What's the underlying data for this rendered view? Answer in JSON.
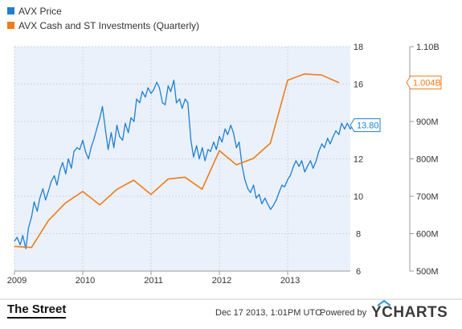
{
  "chart_data": {
    "type": "line",
    "legend": {
      "placement": "top-left",
      "items": [
        {
          "label": "AVX Price",
          "color": "#1f7fd1"
        },
        {
          "label": "AVX Cash and ST Investments (Quarterly)",
          "color": "#f07c1a"
        }
      ]
    },
    "x_ticks": [
      "2009",
      "2010",
      "2011",
      "2012",
      "2013"
    ],
    "xlim": [
      "2009-01",
      "2013-12"
    ],
    "left_axis": {
      "ticks": [
        "6",
        "8",
        "10",
        "12",
        "14",
        "16",
        "18"
      ],
      "ylim": [
        6,
        18
      ]
    },
    "right_axis": {
      "ticks": [
        "500M",
        "600M",
        "700M",
        "800M",
        "900M",
        "1.00B",
        "1.10B"
      ],
      "ylim": [
        500,
        1100
      ],
      "unit": "M"
    },
    "grid": true,
    "plot_background": "#eaf1fb",
    "series": [
      {
        "name": "AVX Price",
        "axis": "left",
        "color": "#1f7fd1",
        "last_value_label": "13.80",
        "points": [
          [
            "2009-01-01",
            7.6
          ],
          [
            "2009-01-15",
            7.8
          ],
          [
            "2009-02-01",
            7.4
          ],
          [
            "2009-02-15",
            7.9
          ],
          [
            "2009-03-01",
            7.2
          ],
          [
            "2009-03-15",
            8.3
          ],
          [
            "2009-04-01",
            8.9
          ],
          [
            "2009-04-15",
            9.7
          ],
          [
            "2009-05-01",
            9.2
          ],
          [
            "2009-05-15",
            9.9
          ],
          [
            "2009-06-01",
            10.4
          ],
          [
            "2009-06-15",
            9.8
          ],
          [
            "2009-07-01",
            10.3
          ],
          [
            "2009-07-15",
            10.8
          ],
          [
            "2009-08-01",
            11.1
          ],
          [
            "2009-08-15",
            10.6
          ],
          [
            "2009-09-01",
            11.4
          ],
          [
            "2009-09-15",
            11.8
          ],
          [
            "2009-10-01",
            11.2
          ],
          [
            "2009-10-15",
            12.0
          ],
          [
            "2009-11-01",
            11.5
          ],
          [
            "2009-11-15",
            12.4
          ],
          [
            "2009-12-01",
            12.6
          ],
          [
            "2009-12-15",
            12.5
          ],
          [
            "2010-01-01",
            13.0
          ],
          [
            "2010-01-15",
            12.4
          ],
          [
            "2010-02-01",
            12.0
          ],
          [
            "2010-02-15",
            12.6
          ],
          [
            "2010-03-01",
            13.1
          ],
          [
            "2010-03-15",
            13.6
          ],
          [
            "2010-04-01",
            14.2
          ],
          [
            "2010-04-15",
            14.8
          ],
          [
            "2010-05-01",
            13.5
          ],
          [
            "2010-05-15",
            12.5
          ],
          [
            "2010-06-01",
            13.4
          ],
          [
            "2010-06-15",
            12.6
          ],
          [
            "2010-07-01",
            13.8
          ],
          [
            "2010-07-15",
            13.2
          ],
          [
            "2010-08-01",
            13.0
          ],
          [
            "2010-08-15",
            13.9
          ],
          [
            "2010-09-01",
            13.4
          ],
          [
            "2010-09-15",
            14.2
          ],
          [
            "2010-10-01",
            14.0
          ],
          [
            "2010-10-15",
            15.2
          ],
          [
            "2010-11-01",
            15.0
          ],
          [
            "2010-11-15",
            15.6
          ],
          [
            "2010-12-01",
            15.3
          ],
          [
            "2010-12-15",
            15.8
          ],
          [
            "2011-01-01",
            15.5
          ],
          [
            "2011-01-15",
            15.7
          ],
          [
            "2011-02-01",
            16.1
          ],
          [
            "2011-02-15",
            15.8
          ],
          [
            "2011-03-01",
            15.0
          ],
          [
            "2011-03-15",
            14.9
          ],
          [
            "2011-04-01",
            15.9
          ],
          [
            "2011-04-15",
            15.6
          ],
          [
            "2011-05-01",
            16.2
          ],
          [
            "2011-05-15",
            15.0
          ],
          [
            "2011-06-01",
            15.2
          ],
          [
            "2011-06-15",
            14.7
          ],
          [
            "2011-07-01",
            15.2
          ],
          [
            "2011-07-15",
            15.0
          ],
          [
            "2011-08-01",
            13.0
          ],
          [
            "2011-08-15",
            12.1
          ],
          [
            "2011-09-01",
            12.7
          ],
          [
            "2011-09-15",
            12.0
          ],
          [
            "2011-10-01",
            12.6
          ],
          [
            "2011-10-15",
            11.9
          ],
          [
            "2011-11-01",
            12.5
          ],
          [
            "2011-11-15",
            12.4
          ],
          [
            "2011-12-01",
            12.9
          ],
          [
            "2011-12-15",
            12.5
          ],
          [
            "2012-01-01",
            13.2
          ],
          [
            "2012-01-15",
            12.9
          ],
          [
            "2012-02-01",
            13.6
          ],
          [
            "2012-02-15",
            13.3
          ],
          [
            "2012-03-01",
            13.8
          ],
          [
            "2012-03-15",
            13.4
          ],
          [
            "2012-04-01",
            12.6
          ],
          [
            "2012-04-15",
            12.9
          ],
          [
            "2012-05-01",
            11.6
          ],
          [
            "2012-05-15",
            10.9
          ],
          [
            "2012-06-01",
            10.4
          ],
          [
            "2012-06-15",
            10.2
          ],
          [
            "2012-07-01",
            10.6
          ],
          [
            "2012-07-15",
            9.9
          ],
          [
            "2012-08-01",
            10.1
          ],
          [
            "2012-08-15",
            9.6
          ],
          [
            "2012-09-01",
            9.9
          ],
          [
            "2012-09-15",
            9.6
          ],
          [
            "2012-10-01",
            9.3
          ],
          [
            "2012-10-15",
            9.5
          ],
          [
            "2012-11-01",
            9.8
          ],
          [
            "2012-11-15",
            10.2
          ],
          [
            "2012-12-01",
            10.6
          ],
          [
            "2012-12-15",
            10.5
          ],
          [
            "2013-01-01",
            10.9
          ],
          [
            "2013-01-15",
            11.1
          ],
          [
            "2013-02-01",
            11.6
          ],
          [
            "2013-02-15",
            11.9
          ],
          [
            "2013-03-01",
            11.6
          ],
          [
            "2013-03-15",
            11.9
          ],
          [
            "2013-04-01",
            11.3
          ],
          [
            "2013-04-15",
            11.6
          ],
          [
            "2013-05-01",
            11.9
          ],
          [
            "2013-05-15",
            11.5
          ],
          [
            "2013-06-01",
            11.9
          ],
          [
            "2013-06-15",
            12.4
          ],
          [
            "2013-07-01",
            12.8
          ],
          [
            "2013-07-15",
            12.6
          ],
          [
            "2013-08-01",
            13.1
          ],
          [
            "2013-08-15",
            12.8
          ],
          [
            "2013-09-01",
            13.2
          ],
          [
            "2013-09-15",
            13.5
          ],
          [
            "2013-10-01",
            13.3
          ],
          [
            "2013-10-15",
            13.9
          ],
          [
            "2013-11-01",
            13.6
          ],
          [
            "2013-11-15",
            13.9
          ],
          [
            "2013-12-01",
            13.6
          ],
          [
            "2013-12-15",
            13.8
          ]
        ]
      },
      {
        "name": "AVX Cash and ST Investments (Quarterly)",
        "axis": "right",
        "color": "#f07c1a",
        "last_value_label": "1.004B",
        "points": [
          [
            "2009-01-01",
            566
          ],
          [
            "2009-03-31",
            563
          ],
          [
            "2009-06-30",
            635
          ],
          [
            "2009-09-30",
            682
          ],
          [
            "2009-12-31",
            713
          ],
          [
            "2010-03-31",
            677
          ],
          [
            "2010-06-30",
            718
          ],
          [
            "2010-09-30",
            743
          ],
          [
            "2010-12-31",
            705
          ],
          [
            "2011-03-31",
            746
          ],
          [
            "2011-06-30",
            751
          ],
          [
            "2011-09-30",
            719
          ],
          [
            "2011-12-31",
            822
          ],
          [
            "2012-03-31",
            784
          ],
          [
            "2012-06-30",
            801
          ],
          [
            "2012-09-30",
            842
          ],
          [
            "2012-12-31",
            1010
          ],
          [
            "2013-03-31",
            1027
          ],
          [
            "2013-06-30",
            1024
          ],
          [
            "2013-09-30",
            1004
          ]
        ]
      }
    ]
  },
  "footer": {
    "brand": "The Street",
    "timestamp": "Dec 17 2013, 1:01PM UTC.",
    "powered_by": "Powered by",
    "provider": "YCHARTS"
  }
}
